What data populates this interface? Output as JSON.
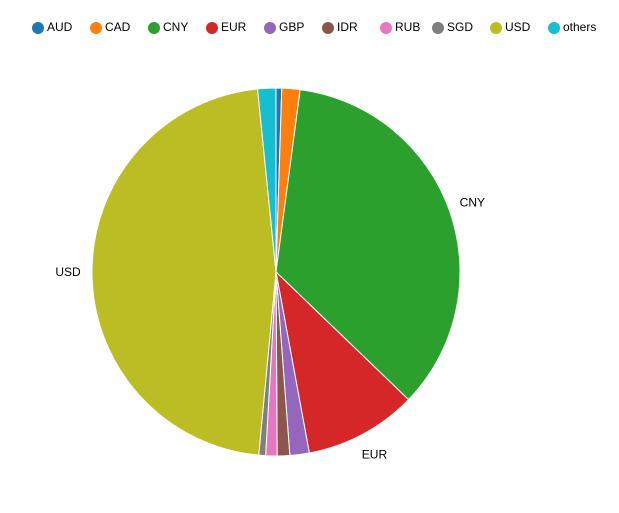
{
  "chart_data": {
    "type": "pie",
    "categories": [
      "AUD",
      "CAD",
      "CNY",
      "EUR",
      "GBP",
      "IDR",
      "RUB",
      "SGD",
      "USD",
      "others"
    ],
    "values": [
      0.5,
      1.6,
      35.1,
      9.9,
      1.7,
      1.1,
      1.0,
      0.6,
      46.9,
      1.6
    ],
    "colors": [
      "#1f77b4",
      "#ff7f0e",
      "#2ca02c",
      "#d62728",
      "#9467bd",
      "#8c564b",
      "#e377c2",
      "#7f7f7f",
      "#bcbd22",
      "#17becf"
    ],
    "legend": "top"
  }
}
